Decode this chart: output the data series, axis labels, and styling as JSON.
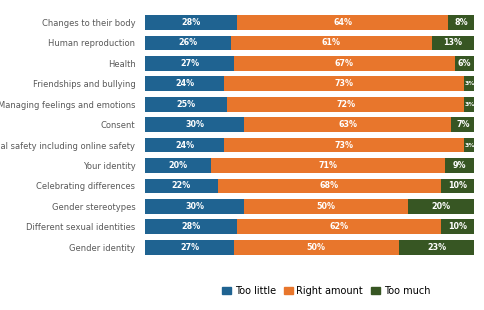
{
  "categories": [
    "Changes to their body",
    "Human reproduction",
    "Health",
    "Friendships and bullying",
    "Managing feelings and emotions",
    "Consent",
    "Personal safety including online safety",
    "Your identity",
    "Celebrating differences",
    "Gender stereotypes",
    "Different sexual identities",
    "Gender identity"
  ],
  "too_little": [
    28,
    26,
    27,
    24,
    25,
    30,
    24,
    20,
    22,
    30,
    28,
    27
  ],
  "right_amount": [
    64,
    61,
    67,
    73,
    72,
    63,
    73,
    71,
    68,
    50,
    62,
    50
  ],
  "too_much": [
    8,
    13,
    6,
    3,
    3,
    7,
    3,
    9,
    10,
    20,
    10,
    23
  ],
  "color_too_little": "#1f6391",
  "color_right_amount": "#e8762c",
  "color_too_much": "#375623",
  "bar_height": 0.72,
  "label_fontsize": 5.8,
  "axis_label_fontsize": 6.0,
  "legend_fontsize": 7.0,
  "background_color": "#ffffff",
  "text_color": "#595959"
}
